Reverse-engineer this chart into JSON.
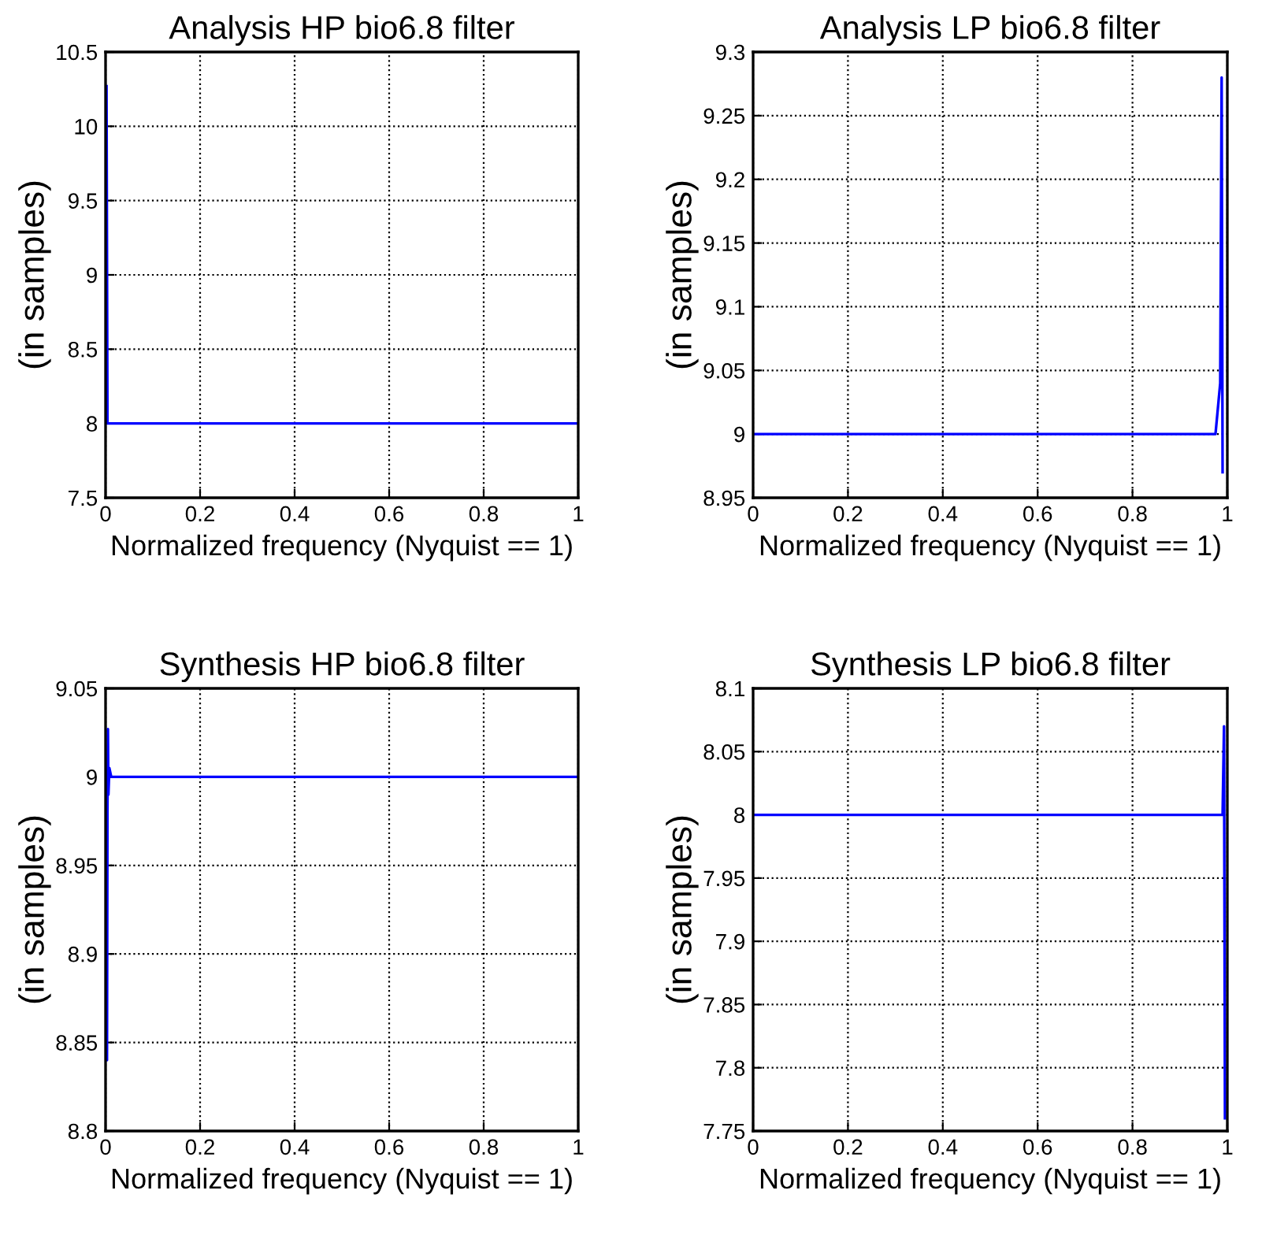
{
  "chart_data": [
    {
      "type": "line",
      "title": "Analysis HP bio6.8 filter",
      "xlabel": "Normalized frequency (Nyquist == 1)",
      "ylabel": "(in samples)",
      "grid": true,
      "line_style": "solid",
      "series": [
        {
          "color": "#0000ff",
          "x": [
            0.002,
            0.004,
            1
          ],
          "values": [
            10.27,
            8,
            8
          ]
        }
      ],
      "xlim": [
        0,
        1
      ],
      "xticks": [
        0,
        0.2,
        0.4,
        0.6,
        0.8,
        1
      ],
      "ylim": [
        7.5,
        10.5
      ],
      "yticks": [
        7.5,
        8,
        8.5,
        9,
        9.5,
        10,
        10.5
      ]
    },
    {
      "type": "line",
      "title": "Analysis LP bio6.8 filter",
      "xlabel": "Normalized frequency (Nyquist == 1)",
      "ylabel": "(in samples)",
      "grid": true,
      "line_style": "solid",
      "series": [
        {
          "color": "#0000ff",
          "x": [
            0,
            0.975,
            0.985,
            0.988,
            0.99
          ],
          "values": [
            9,
            9,
            9.04,
            9.28,
            8.97
          ]
        }
      ],
      "xlim": [
        0,
        1
      ],
      "xticks": [
        0,
        0.2,
        0.4,
        0.6,
        0.8,
        1
      ],
      "ylim": [
        8.95,
        9.3
      ],
      "yticks": [
        8.95,
        9,
        9.05,
        9.1,
        9.15,
        9.2,
        9.25,
        9.3
      ]
    },
    {
      "type": "line",
      "title": "Synthesis HP bio6.8 filter",
      "xlabel": "Normalized frequency (Nyquist == 1)",
      "ylabel": "(in samples)",
      "grid": true,
      "line_style": "solid",
      "series": [
        {
          "color": "#0000ff",
          "x": [
            0.002,
            0.003,
            0.004,
            0.005,
            0.006,
            0.008,
            0.012,
            1
          ],
          "values": [
            8.97,
            8.84,
            8.98,
            9.027,
            8.99,
            9.005,
            9,
            9
          ]
        }
      ],
      "xlim": [
        0,
        1
      ],
      "xticks": [
        0,
        0.2,
        0.4,
        0.6,
        0.8,
        1
      ],
      "ylim": [
        8.8,
        9.05
      ],
      "yticks": [
        8.8,
        8.85,
        8.9,
        8.95,
        9,
        9.05
      ]
    },
    {
      "type": "line",
      "title": "Synthesis LP bio6.8 filter",
      "xlabel": "Normalized frequency (Nyquist == 1)",
      "ylabel": "(in samples)",
      "grid": true,
      "line_style": "solid",
      "series": [
        {
          "color": "#0000ff",
          "x": [
            0,
            0.99,
            0.993,
            0.995
          ],
          "values": [
            8,
            8,
            8.07,
            7.76
          ]
        }
      ],
      "xlim": [
        0,
        1
      ],
      "xticks": [
        0,
        0.2,
        0.4,
        0.6,
        0.8,
        1
      ],
      "ylim": [
        7.75,
        8.1
      ],
      "yticks": [
        7.75,
        7.8,
        7.85,
        7.9,
        7.95,
        8,
        8.05,
        8.1
      ]
    }
  ]
}
